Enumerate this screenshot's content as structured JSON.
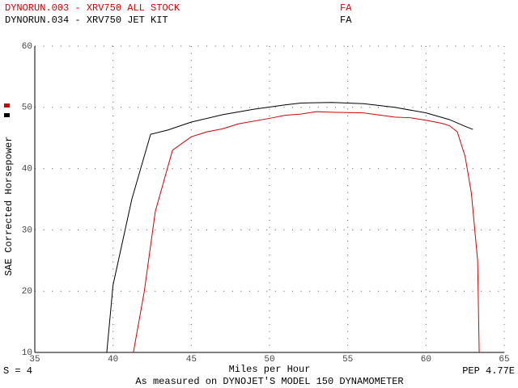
{
  "chart_data": {
    "type": "line",
    "xlabel": "Miles per Hour",
    "ylabel": "SAE Corrected Horsepower",
    "xlim": [
      35,
      65
    ],
    "ylim": [
      10,
      60
    ],
    "xticks": [
      35,
      40,
      45,
      50,
      55,
      60,
      65
    ],
    "yticks": [
      10,
      20,
      30,
      40,
      50,
      60
    ],
    "grid": true,
    "series": [
      {
        "name": "DYNORUN.003 - XRV750 ALL STOCK",
        "run_code": "FA",
        "color": "#d40000",
        "x": [
          41.3,
          42.0,
          42.7,
          43.8,
          45,
          46,
          47,
          48,
          50,
          51,
          52,
          53,
          54,
          56,
          58,
          59,
          60,
          61,
          61.5,
          62,
          62.5,
          62.9,
          63.3,
          63.4
        ],
        "values": [
          10,
          20,
          33,
          43,
          45.2,
          46,
          46.5,
          47.3,
          48.2,
          48.7,
          48.9,
          49.3,
          49.2,
          49.1,
          48.4,
          48.3,
          47.9,
          47.4,
          47.0,
          46,
          42,
          36,
          25,
          10
        ]
      },
      {
        "name": "DYNORUN.034 - XRV750 JET KIT",
        "run_code": "FA",
        "color": "#000000",
        "x": [
          39.6,
          40.0,
          41.2,
          42.4,
          43.5,
          45,
          47,
          49,
          51,
          52,
          54,
          56,
          58,
          60,
          61.5,
          62.5,
          63
        ],
        "values": [
          10,
          21,
          35,
          45.6,
          46.3,
          47.6,
          48.8,
          49.7,
          50.4,
          50.7,
          50.8,
          50.6,
          50.0,
          49.1,
          48.0,
          46.9,
          46.4
        ]
      }
    ],
    "footer_left": "S = 4",
    "footer_right": "PEP 4.77E",
    "footer_center": "As measured on DYNOJET'S MODEL 150 DYNAMOMETER"
  }
}
